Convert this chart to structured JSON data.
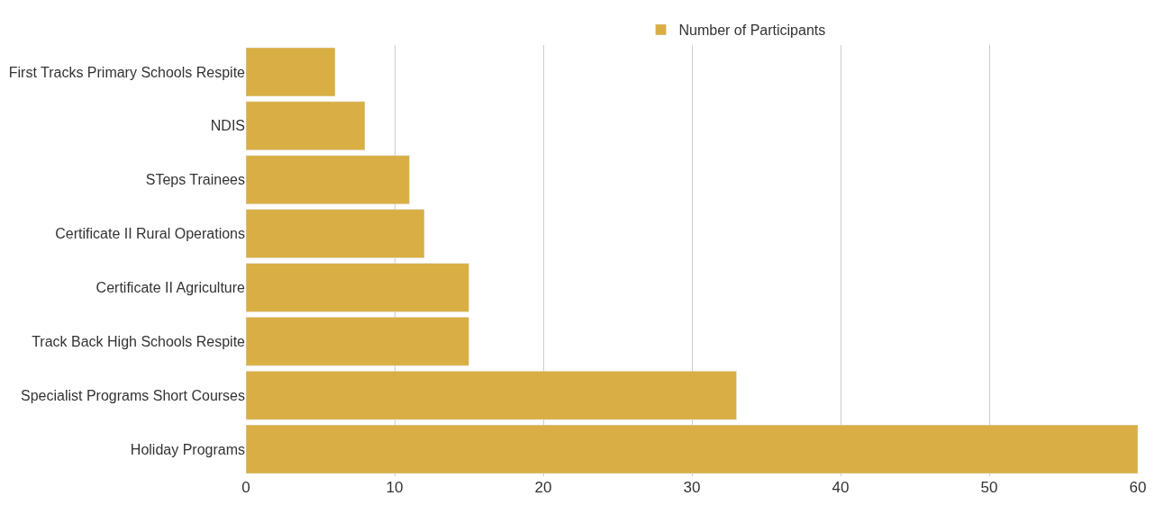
{
  "chart_data": {
    "type": "bar",
    "orientation": "horizontal",
    "categories": [
      "First Tracks Primary Schools Respite",
      "NDIS",
      "STeps Trainees",
      "Certificate II Rural Operations",
      "Certificate II Agriculture",
      "Track Back High Schools Respite",
      "Specialist Programs Short Courses",
      "Holiday Programs"
    ],
    "series": [
      {
        "name": "Number of Participants",
        "color": "#d9ae44",
        "values": [
          6,
          8,
          11,
          12,
          15,
          15,
          33,
          60
        ]
      }
    ],
    "xlim": [
      0,
      60
    ],
    "xticks": [
      0,
      10,
      20,
      30,
      40,
      50,
      60
    ],
    "grid": "x",
    "legend": "top"
  }
}
